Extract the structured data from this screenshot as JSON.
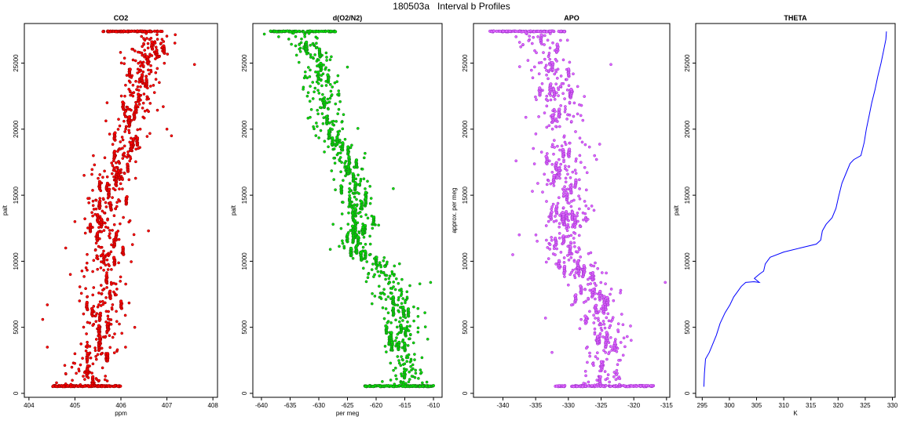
{
  "figure_title": "180503a   Interval b Profiles",
  "chart_data": [
    {
      "type": "scatter",
      "title": "CO2",
      "xlabel": "ppm",
      "ylabel": "palt",
      "xlim": [
        403.9,
        408.1
      ],
      "ylim": [
        -300,
        28000
      ],
      "xticks": [
        404,
        405,
        406,
        407,
        408
      ],
      "yticks": [
        0,
        5000,
        10000,
        15000,
        20000,
        25000
      ],
      "color": "#ff0000",
      "outline_color": "#8b0000",
      "ribbon": {
        "y": 27400,
        "x_range": [
          405.6,
          406.9
        ]
      },
      "base": {
        "y": 550,
        "x_range": [
          404.5,
          406.0
        ]
      },
      "profile": [
        [
          405.3,
          600
        ],
        [
          405.3,
          2000
        ],
        [
          405.5,
          4000
        ],
        [
          405.6,
          6000
        ],
        [
          405.6,
          8000
        ],
        [
          405.6,
          10000
        ],
        [
          405.7,
          12000
        ],
        [
          405.6,
          14000
        ],
        [
          405.8,
          16000
        ],
        [
          406.0,
          18000
        ],
        [
          406.2,
          20000
        ],
        [
          406.4,
          22000
        ],
        [
          406.5,
          24000
        ],
        [
          406.6,
          26000
        ],
        [
          406.8,
          27200
        ]
      ],
      "spread": 0.45,
      "points": [
        [
          404.6,
          800
        ],
        [
          404.8,
          1500
        ],
        [
          405.0,
          3000
        ],
        [
          404.4,
          3500
        ],
        [
          404.3,
          5600
        ],
        [
          405.1,
          7000
        ],
        [
          404.9,
          9000
        ],
        [
          404.8,
          11000
        ],
        [
          405.0,
          13000
        ],
        [
          405.2,
          16500
        ],
        [
          405.4,
          18000
        ],
        [
          405.7,
          22000
        ],
        [
          406.9,
          26200
        ],
        [
          407.6,
          24900
        ],
        [
          407.0,
          20000
        ],
        [
          407.1,
          19500
        ],
        [
          406.6,
          12300
        ],
        [
          406.3,
          5000
        ],
        [
          406.1,
          3500
        ],
        [
          404.4,
          6700
        ]
      ]
    },
    {
      "type": "scatter",
      "title": "d(O2/N2)",
      "xlabel": "per meg",
      "ylabel": "palt",
      "xlim": [
        -641.5,
        -608.5
      ],
      "ylim": [
        -300,
        28000
      ],
      "xticks": [
        -640,
        -635,
        -630,
        -625,
        -620,
        -615,
        -610
      ],
      "yticks": [
        0,
        5000,
        10000,
        15000,
        20000,
        25000
      ],
      "color": "#00e000",
      "outline_color": "#1f6b1f",
      "ribbon": {
        "y": 27400,
        "x_range": [
          -638.5,
          -627.0
        ]
      },
      "base": {
        "y": 550,
        "x_range": [
          -622.0,
          -610.0
        ]
      },
      "profile": [
        [
          -615.0,
          600
        ],
        [
          -614.8,
          2000
        ],
        [
          -615.3,
          4000
        ],
        [
          -616.0,
          6000
        ],
        [
          -616.8,
          8000
        ],
        [
          -620.0,
          10000
        ],
        [
          -623.5,
          11000
        ],
        [
          -623.0,
          13000
        ],
        [
          -623.5,
          15000
        ],
        [
          -624.5,
          17000
        ],
        [
          -627.0,
          19000
        ],
        [
          -628.5,
          21000
        ],
        [
          -629.0,
          23000
        ],
        [
          -630.0,
          25000
        ],
        [
          -633.0,
          26800
        ]
      ],
      "spread": 3.2,
      "points": [
        [
          -610.5,
          8400
        ],
        [
          -611.0,
          4100
        ],
        [
          -637.0,
          27000
        ],
        [
          -639.5,
          27200
        ],
        [
          -631.5,
          20900
        ],
        [
          -632.0,
          22500
        ],
        [
          -621.0,
          11300
        ],
        [
          -611.5,
          6100
        ],
        [
          -627.5,
          12800
        ],
        [
          -617.0,
          15500
        ],
        [
          -625.0,
          24700
        ],
        [
          -626.5,
          21500
        ],
        [
          -628.0,
          10900
        ],
        [
          -612.0,
          2700
        ],
        [
          -618.5,
          9600
        ]
      ]
    },
    {
      "type": "scatter",
      "title": "APO",
      "xlabel": "",
      "ylabel": "approx. per meg",
      "xlim": [
        -344.5,
        -314.5
      ],
      "ylim": [
        -300,
        28000
      ],
      "xticks": [
        -340,
        -335,
        -330,
        -325,
        -320,
        -315
      ],
      "yticks": [
        0,
        5000,
        10000,
        15000,
        20000,
        25000
      ],
      "color": "#e066ff",
      "outline_color": "#9a2fc9",
      "ribbon": {
        "y": 27400,
        "x_range": [
          -342.0,
          -330.5
        ]
      },
      "base": {
        "y": 550,
        "x_range": [
          -332.0,
          -317.0
        ]
      },
      "profile": [
        [
          -324.0,
          600
        ],
        [
          -324.5,
          2000
        ],
        [
          -324.5,
          4000
        ],
        [
          -325.0,
          6000
        ],
        [
          -326.5,
          8000
        ],
        [
          -328.5,
          10000
        ],
        [
          -331.0,
          11500
        ],
        [
          -330.5,
          13000
        ],
        [
          -330.0,
          15000
        ],
        [
          -331.0,
          17000
        ],
        [
          -330.5,
          19000
        ],
        [
          -331.0,
          21000
        ],
        [
          -331.5,
          23000
        ],
        [
          -333.0,
          25000
        ],
        [
          -334.5,
          26800
        ]
      ],
      "spread": 3.6,
      "points": [
        [
          -315.2,
          8400
        ],
        [
          -320.5,
          5100
        ],
        [
          -338.0,
          27000
        ],
        [
          -335.5,
          15300
        ],
        [
          -338.5,
          10500
        ],
        [
          -323.5,
          24900
        ],
        [
          -336.5,
          20900
        ],
        [
          -333.5,
          5700
        ],
        [
          -328.0,
          21800
        ],
        [
          -322.0,
          7800
        ],
        [
          -338.0,
          17600
        ],
        [
          -321.0,
          4300
        ],
        [
          -332.5,
          3100
        ],
        [
          -337.5,
          12000
        ],
        [
          -326.0,
          18000
        ]
      ]
    },
    {
      "type": "line",
      "title": "THETA",
      "xlabel": "K",
      "ylabel": "palt",
      "xlim": [
        293.8,
        330.5
      ],
      "ylim": [
        -300,
        28000
      ],
      "xticks": [
        295,
        300,
        305,
        310,
        315,
        320,
        325,
        330
      ],
      "yticks": [
        0,
        5000,
        10000,
        15000,
        20000,
        25000
      ],
      "color": "#0000ff",
      "series": [
        {
          "values": [
            [
              295.3,
              500
            ],
            [
              295.4,
              1500
            ],
            [
              295.6,
              2600
            ],
            [
              296.3,
              3100
            ],
            [
              296.9,
              3700
            ],
            [
              297.6,
              4400
            ],
            [
              298.3,
              5300
            ],
            [
              299.2,
              6100
            ],
            [
              300.1,
              6700
            ],
            [
              300.8,
              7300
            ],
            [
              301.5,
              7700
            ],
            [
              302.2,
              8100
            ],
            [
              303.0,
              8400
            ],
            [
              304.5,
              8450
            ],
            [
              305.5,
              8400
            ],
            [
              304.6,
              8700
            ],
            [
              305.6,
              9050
            ],
            [
              306.3,
              9250
            ],
            [
              306.6,
              9800
            ],
            [
              307.5,
              10300
            ],
            [
              310.0,
              10700
            ],
            [
              313.0,
              11000
            ],
            [
              316.0,
              11300
            ],
            [
              316.8,
              11600
            ],
            [
              317.1,
              12300
            ],
            [
              317.8,
              12800
            ],
            [
              318.9,
              13300
            ],
            [
              319.6,
              14000
            ],
            [
              320.1,
              14900
            ],
            [
              320.7,
              15900
            ],
            [
              321.5,
              16700
            ],
            [
              322.2,
              17400
            ],
            [
              322.9,
              17700
            ],
            [
              324.2,
              18000
            ],
            [
              324.8,
              19000
            ],
            [
              325.2,
              20000
            ],
            [
              325.7,
              21000
            ],
            [
              326.2,
              22000
            ],
            [
              326.8,
              23000
            ],
            [
              327.3,
              24000
            ],
            [
              327.9,
              25000
            ],
            [
              328.4,
              26000
            ],
            [
              328.8,
              26800
            ],
            [
              328.9,
              27400
            ]
          ]
        }
      ]
    }
  ]
}
